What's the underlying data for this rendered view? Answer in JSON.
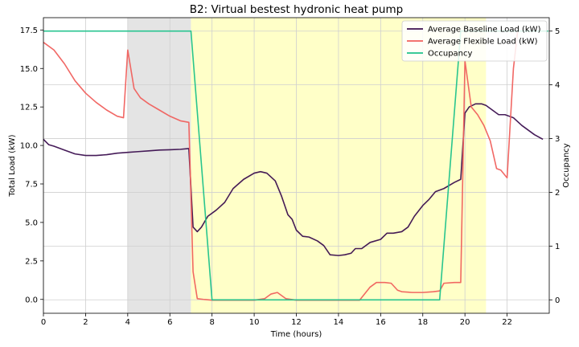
{
  "chart_data": {
    "type": "line",
    "title": "B2: Virtual bestest hydronic heat pump",
    "xlabel": "Time (hours)",
    "ylabel": "Total Load (kW)",
    "y2label": "Occupancy",
    "xlim": [
      0,
      24
    ],
    "ylim": [
      -0.9,
      18.3
    ],
    "y2lim": [
      -0.25,
      5.25
    ],
    "xticks": [
      0,
      2,
      4,
      6,
      8,
      10,
      12,
      14,
      16,
      18,
      20,
      22
    ],
    "yticks": [
      0.0,
      2.5,
      5.0,
      7.5,
      10.0,
      12.5,
      15.0,
      17.5
    ],
    "ytick_labels": [
      "0.0",
      "2.5",
      "5.0",
      "7.5",
      "10.0",
      "12.5",
      "15.0",
      "17.5"
    ],
    "y2ticks": [
      0,
      1,
      2,
      3,
      4,
      5
    ],
    "grid": true,
    "legend_position": "top-right",
    "shaded_regions": [
      {
        "x0": 4,
        "x1": 7,
        "color": "#e4e4e4"
      },
      {
        "x0": 7,
        "x1": 21,
        "color": "#ffffc8"
      }
    ],
    "series": [
      {
        "name": "Average Baseline Load (kW)",
        "color": "#3b0f4f",
        "axis": "left",
        "x": [
          0,
          0.25,
          0.5,
          1,
          1.5,
          2,
          2.5,
          3,
          3.5,
          4,
          4.5,
          5,
          5.5,
          6,
          6.5,
          6.9,
          7.1,
          7.3,
          7.5,
          7.8,
          8.2,
          8.6,
          9,
          9.5,
          10,
          10.3,
          10.6,
          11,
          11.3,
          11.6,
          11.8,
          12,
          12.3,
          12.6,
          13,
          13.3,
          13.6,
          14,
          14.3,
          14.6,
          14.8,
          15.1,
          15.5,
          16,
          16.3,
          16.6,
          17,
          17.3,
          17.6,
          18,
          18.3,
          18.6,
          19,
          19.5,
          19.8,
          20,
          20.2,
          20.5,
          20.8,
          21,
          21.3,
          21.6,
          21.9,
          22.3,
          22.7,
          23,
          23.3,
          23.7
        ],
        "values": [
          10.4,
          10.05,
          9.95,
          9.7,
          9.45,
          9.35,
          9.35,
          9.4,
          9.5,
          9.55,
          9.6,
          9.65,
          9.7,
          9.72,
          9.75,
          9.8,
          4.7,
          4.4,
          4.7,
          5.4,
          5.8,
          6.3,
          7.2,
          7.8,
          8.2,
          8.3,
          8.2,
          7.7,
          6.7,
          5.5,
          5.2,
          4.5,
          4.1,
          4.05,
          3.8,
          3.5,
          2.9,
          2.85,
          2.9,
          3.0,
          3.3,
          3.3,
          3.7,
          3.9,
          4.3,
          4.3,
          4.4,
          4.7,
          5.4,
          6.1,
          6.5,
          7.0,
          7.2,
          7.6,
          7.8,
          12.1,
          12.5,
          12.7,
          12.7,
          12.6,
          12.3,
          12.0,
          12.0,
          11.8,
          11.3,
          11.0,
          10.7,
          10.4
        ]
      },
      {
        "name": "Average Flexible Load (kW)",
        "color": "#f0605d",
        "axis": "left",
        "x": [
          0,
          0.5,
          1,
          1.5,
          2,
          2.5,
          3,
          3.5,
          3.8,
          4.0,
          4.3,
          4.6,
          5,
          5.5,
          6,
          6.5,
          6.9,
          7.1,
          7.3,
          7.6,
          8,
          9,
          10,
          10.5,
          10.8,
          11.1,
          11.5,
          12,
          13,
          14,
          15,
          15.5,
          15.8,
          16.2,
          16.5,
          16.8,
          17,
          17.5,
          18,
          18.5,
          18.8,
          19,
          19.5,
          19.8,
          20.0,
          20.3,
          20.6,
          20.9,
          21.2,
          21.5,
          21.7,
          22,
          22.3,
          22.5
        ],
        "values": [
          16.7,
          16.2,
          15.3,
          14.2,
          13.4,
          12.8,
          12.3,
          11.9,
          11.8,
          16.2,
          13.7,
          13.1,
          12.7,
          12.3,
          11.9,
          11.6,
          11.5,
          1.8,
          0.05,
          0.0,
          -0.05,
          -0.05,
          -0.05,
          0.05,
          0.35,
          0.45,
          0.05,
          -0.05,
          -0.05,
          -0.05,
          -0.05,
          0.8,
          1.1,
          1.1,
          1.05,
          0.6,
          0.5,
          0.45,
          0.45,
          0.5,
          0.55,
          1.05,
          1.1,
          1.1,
          15.5,
          12.5,
          12.0,
          11.3,
          10.3,
          8.5,
          8.4,
          7.9,
          15.0,
          17.4
        ]
      },
      {
        "name": "Occupancy",
        "color": "#1ec28b",
        "axis": "right",
        "x": [
          0,
          7,
          8,
          18.8,
          19.8,
          23.95
        ],
        "values": [
          5,
          5,
          0,
          0,
          5,
          5
        ]
      }
    ]
  }
}
